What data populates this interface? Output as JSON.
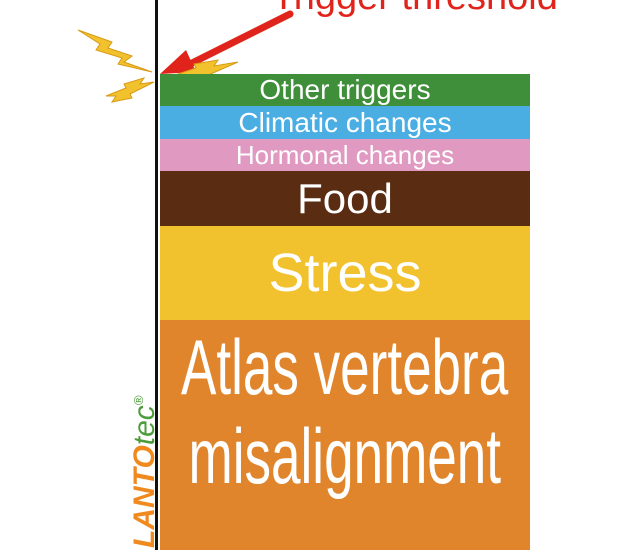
{
  "threshold": {
    "label": "Trigger threshold"
  },
  "layers": [
    {
      "id": "other",
      "label": "Other triggers",
      "color": "#3f8f3a"
    },
    {
      "id": "climatic",
      "label": "Climatic changes",
      "color": "#4aaee3"
    },
    {
      "id": "hormonal",
      "label": "Hormonal changes",
      "color": "#e09ac2"
    },
    {
      "id": "food",
      "label": "Food",
      "color": "#5a2c11"
    },
    {
      "id": "stress",
      "label": "Stress",
      "color": "#f2c12e"
    },
    {
      "id": "atlas",
      "label_line1": "Atlas vertebra",
      "label_line2": "misalignment",
      "color": "#e0852b"
    }
  ],
  "brand": {
    "main": "LANTO",
    "suffix": "tec",
    "registered": "®"
  },
  "colors": {
    "arrow": "#e0241b",
    "lightning": "#f2c12e",
    "axis": "#111111"
  },
  "icons": [
    "lightning-icon",
    "arrow-icon"
  ]
}
